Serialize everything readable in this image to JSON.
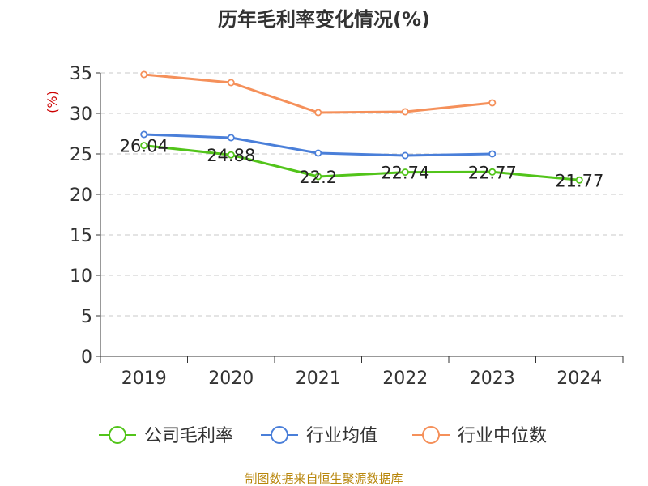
{
  "chart_data": {
    "type": "line",
    "title": "历年毛利率变化情况(%)",
    "ylabel": "(%)",
    "categories": [
      "2019",
      "2020",
      "2021",
      "2022",
      "2023",
      "2024"
    ],
    "ylim": [
      0,
      35
    ],
    "yticks": [
      0,
      5,
      10,
      15,
      20,
      25,
      30,
      35
    ],
    "grid": true,
    "legend_position": "bottom",
    "series": [
      {
        "name": "公司毛利率",
        "color": "#52c41a",
        "values": [
          26.04,
          24.88,
          22.2,
          22.74,
          22.77,
          21.77
        ],
        "labels": [
          "26.04",
          "24.88",
          "22.2",
          "22.74",
          "22.77",
          "21.77"
        ]
      },
      {
        "name": "行业均值",
        "color": "#4a7fd9",
        "values": [
          27.4,
          27.0,
          25.1,
          24.8,
          25.0,
          null
        ]
      },
      {
        "name": "行业中位数",
        "color": "#f5905a",
        "values": [
          34.8,
          33.8,
          30.1,
          30.2,
          31.3,
          null
        ]
      }
    ]
  },
  "footer": "制图数据来自恒生聚源数据库"
}
